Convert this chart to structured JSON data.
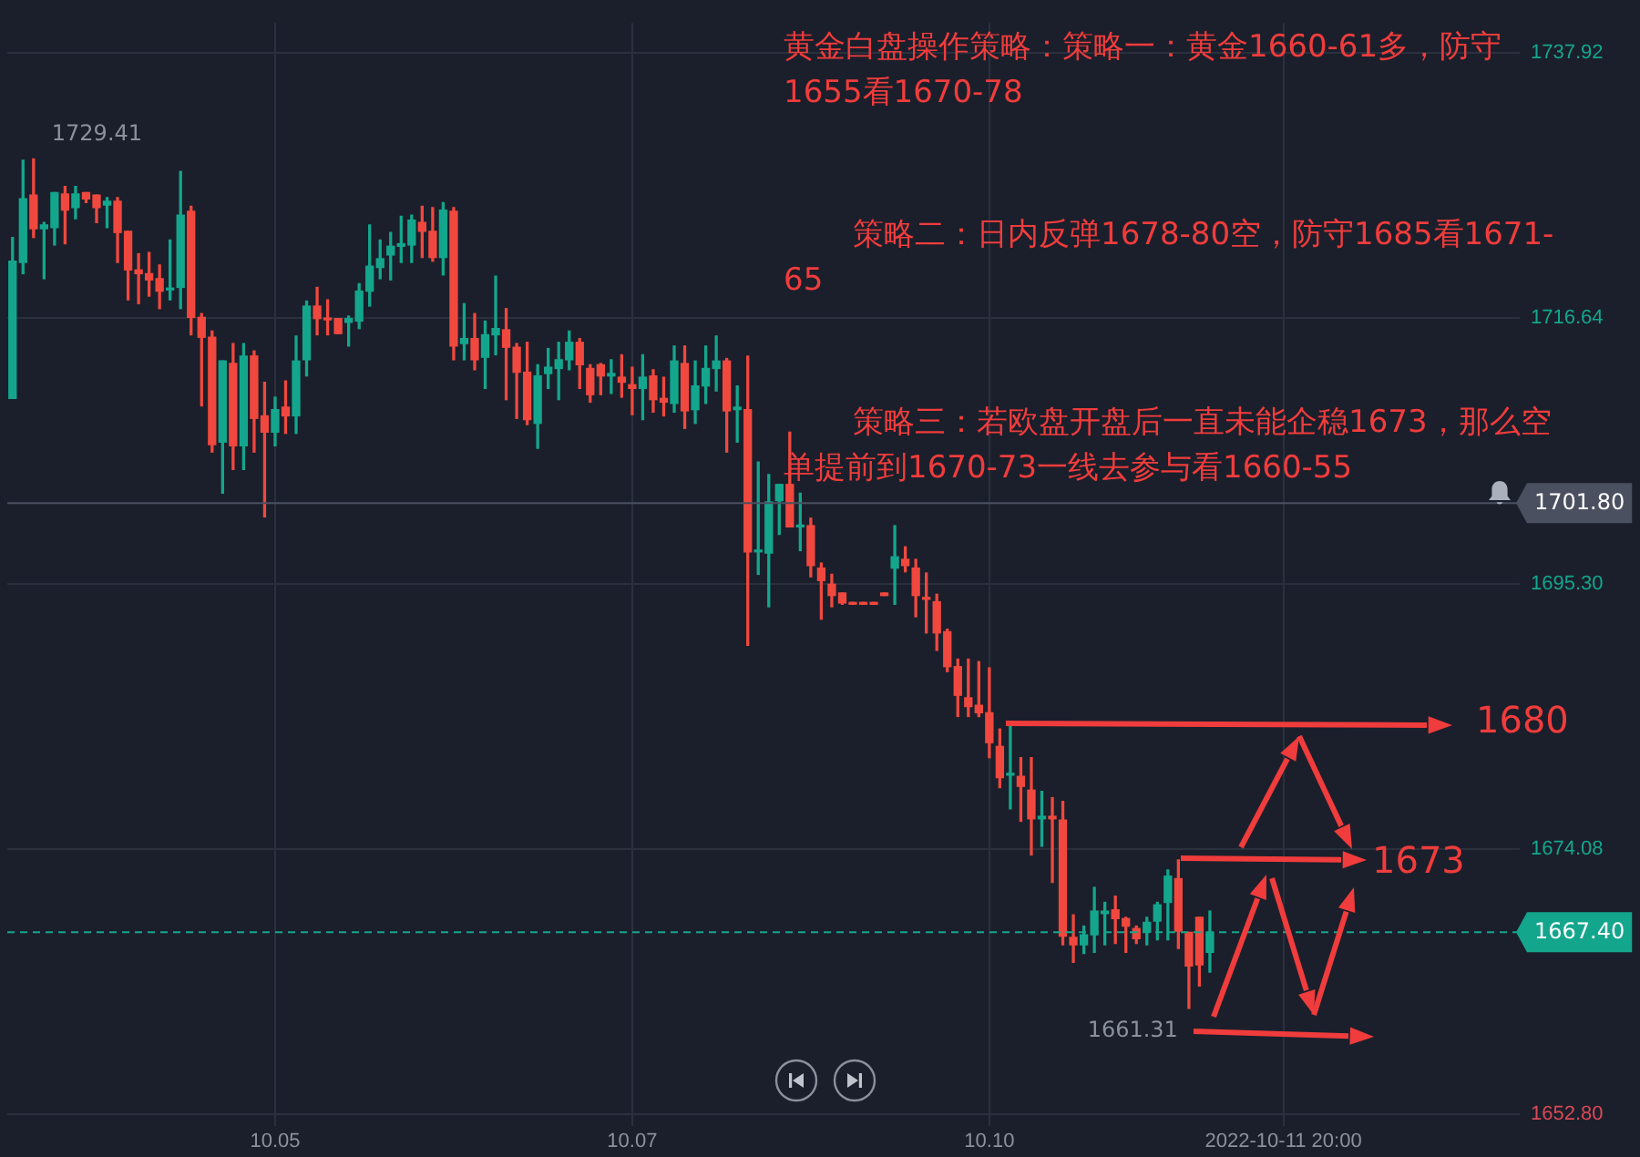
{
  "chart_data": {
    "type": "candlestick",
    "categories": [
      null,
      null,
      null,
      null,
      null,
      null,
      null,
      null,
      null,
      null,
      null,
      null,
      null,
      null,
      null,
      null,
      null,
      null,
      null,
      null,
      null,
      null,
      null,
      null,
      null,
      "10.05",
      null,
      null,
      null,
      null,
      null,
      null,
      null,
      null,
      null,
      null,
      null,
      null,
      null,
      null,
      null,
      null,
      null,
      null,
      null,
      null,
      null,
      null,
      null,
      null,
      null,
      null,
      null,
      null,
      null,
      null,
      null,
      null,
      null,
      "10.07",
      null,
      null,
      null,
      null,
      null,
      null,
      null,
      null,
      null,
      null,
      null,
      null,
      null,
      null,
      null,
      null,
      null,
      null,
      null,
      null,
      null,
      null,
      null,
      null,
      null,
      null,
      null,
      null,
      null,
      null,
      null,
      null,
      null,
      "10.10",
      null,
      null,
      null,
      null,
      null,
      null,
      null,
      null,
      null,
      null,
      null,
      null,
      null,
      null,
      null,
      null,
      null,
      null,
      null,
      null,
      null,
      null,
      null,
      null,
      null,
      null,
      null,
      "2022-10-11 20:00",
      null,
      null,
      null,
      null,
      null,
      null,
      null,
      null,
      null,
      null,
      null,
      null,
      null,
      null,
      null,
      null,
      null,
      null,
      null,
      null,
      null,
      null
    ],
    "ohlc": [
      [
        1710.2,
        1723.1,
        1710.2,
        1721.2
      ],
      [
        1721.1,
        1729.3,
        1720.2,
        1726.2
      ],
      [
        1726.5,
        1729.41,
        1723.1,
        1723.8
      ],
      [
        1723.8,
        1724.3,
        1719.8,
        1724.1
      ],
      [
        1723.9,
        1726.7,
        1722.5,
        1726.7
      ],
      [
        1726.6,
        1727.2,
        1722.6,
        1725.3
      ],
      [
        1725.5,
        1727.2,
        1724.6,
        1726.6
      ],
      [
        1726.7,
        1726.7,
        1725.9,
        1726.2
      ],
      [
        1726.5,
        1726.5,
        1724.3,
        1725.5
      ],
      [
        1725.7,
        1726.3,
        1723.9,
        1726.0
      ],
      [
        1726.0,
        1726.3,
        1721.1,
        1723.5
      ],
      [
        1723.6,
        1723.6,
        1718.1,
        1720.5
      ],
      [
        1720.5,
        1721.8,
        1717.8,
        1720.2
      ],
      [
        1720.2,
        1721.9,
        1718.4,
        1719.7
      ],
      [
        1719.8,
        1720.9,
        1717.4,
        1718.8
      ],
      [
        1718.9,
        1722.9,
        1718.1,
        1719.0
      ],
      [
        1719.1,
        1728.4,
        1717.4,
        1724.9
      ],
      [
        1725.2,
        1725.6,
        1715.3,
        1716.7
      ],
      [
        1716.7,
        1717.0,
        1709.6,
        1715.1
      ],
      [
        1715.1,
        1715.6,
        1705.9,
        1706.5
      ],
      [
        1706.7,
        1713.2,
        1702.6,
        1713.2
      ],
      [
        1713.0,
        1714.6,
        1704.5,
        1706.4
      ],
      [
        1706.4,
        1714.6,
        1704.5,
        1713.6
      ],
      [
        1713.6,
        1714.0,
        1705.9,
        1708.6
      ],
      [
        1708.8,
        1711.5,
        1700.7,
        1707.5
      ],
      [
        1707.5,
        1710.3,
        1706.4,
        1709.3
      ],
      [
        1709.5,
        1711.6,
        1707.4,
        1708.8
      ],
      [
        1708.8,
        1715.2,
        1707.4,
        1713.2
      ],
      [
        1713.3,
        1718.0,
        1712.0,
        1717.6
      ],
      [
        1717.6,
        1719.1,
        1715.3,
        1716.6
      ],
      [
        1716.6,
        1718.1,
        1715.3,
        1716.5
      ],
      [
        1716.6,
        1716.6,
        1715.4,
        1715.4
      ],
      [
        1716.3,
        1716.8,
        1714.4,
        1716.6
      ],
      [
        1716.4,
        1719.4,
        1715.8,
        1718.8
      ],
      [
        1718.8,
        1724.1,
        1717.6,
        1720.8
      ],
      [
        1720.7,
        1722.9,
        1719.8,
        1721.4
      ],
      [
        1721.7,
        1723.5,
        1719.7,
        1722.4
      ],
      [
        1722.4,
        1724.8,
        1721.1,
        1722.6
      ],
      [
        1722.5,
        1724.9,
        1721.1,
        1724.5
      ],
      [
        1724.3,
        1725.6,
        1721.5,
        1723.6
      ],
      [
        1723.6,
        1725.5,
        1721.2,
        1721.5
      ],
      [
        1721.5,
        1725.9,
        1720.1,
        1725.3
      ],
      [
        1725.2,
        1725.5,
        1713.3,
        1714.4
      ],
      [
        1714.6,
        1717.8,
        1713.3,
        1715.0
      ],
      [
        1715.0,
        1717.0,
        1712.5,
        1713.3
      ],
      [
        1713.5,
        1716.4,
        1711.0,
        1715.3
      ],
      [
        1715.3,
        1720.0,
        1713.7,
        1715.8
      ],
      [
        1715.7,
        1717.4,
        1710.1,
        1714.3
      ],
      [
        1714.3,
        1714.6,
        1708.6,
        1712.3
      ],
      [
        1712.3,
        1714.7,
        1708.1,
        1708.5
      ],
      [
        1708.2,
        1712.9,
        1706.2,
        1712.0
      ],
      [
        1712.2,
        1714.2,
        1711.0,
        1712.7
      ],
      [
        1712.6,
        1714.7,
        1710.1,
        1713.3
      ],
      [
        1713.3,
        1715.6,
        1712.5,
        1714.7
      ],
      [
        1714.7,
        1715.0,
        1711.0,
        1712.9
      ],
      [
        1712.6,
        1712.9,
        1709.9,
        1710.5
      ],
      [
        1712.9,
        1713.0,
        1710.5,
        1712.0
      ],
      [
        1712.0,
        1713.3,
        1710.6,
        1712.2
      ],
      [
        1711.9,
        1713.7,
        1710.3,
        1711.5
      ],
      [
        1711.3,
        1712.7,
        1708.9,
        1711.0
      ],
      [
        1711.0,
        1713.7,
        1708.5,
        1711.9
      ],
      [
        1712.0,
        1712.5,
        1709.1,
        1710.1
      ],
      [
        1710.2,
        1711.9,
        1708.8,
        1709.9
      ],
      [
        1709.8,
        1714.4,
        1709.1,
        1713.2
      ],
      [
        1713.0,
        1714.4,
        1707.8,
        1709.2
      ],
      [
        1709.3,
        1713.2,
        1708.2,
        1711.2
      ],
      [
        1711.2,
        1714.4,
        1709.8,
        1712.6
      ],
      [
        1712.6,
        1715.2,
        1710.8,
        1713.2
      ],
      [
        1713.2,
        1713.4,
        1705.9,
        1709.2
      ],
      [
        1709.3,
        1711.2,
        1706.7,
        1709.5
      ],
      [
        1709.3,
        1713.6,
        1690.4,
        1697.9
      ],
      [
        1697.9,
        1705.1,
        1696.1,
        1698.0
      ],
      [
        1697.8,
        1704.1,
        1693.5,
        1701.9
      ],
      [
        1702.0,
        1703.3,
        1699.3,
        1703.3
      ],
      [
        1703.3,
        1707.5,
        1699.9,
        1699.9
      ],
      [
        1699.9,
        1702.6,
        1698.0,
        1700.0
      ],
      [
        1700.0,
        1700.6,
        1695.9,
        1696.8
      ],
      [
        1696.6,
        1697.0,
        1692.5,
        1695.6
      ],
      [
        1695.3,
        1696.1,
        1693.5,
        1694.4
      ],
      [
        1694.6,
        1694.6,
        1693.7,
        1693.8
      ],
      [
        1693.7,
        1693.7,
        1693.7,
        1693.7
      ],
      [
        1693.7,
        1693.7,
        1693.7,
        1693.7
      ],
      [
        1693.7,
        1693.7,
        1693.7,
        1693.7
      ],
      [
        1694.6,
        1694.6,
        1694.4,
        1694.4
      ],
      [
        1696.6,
        1700.0,
        1693.7,
        1697.5
      ],
      [
        1697.3,
        1698.3,
        1696.3,
        1696.8
      ],
      [
        1696.6,
        1697.3,
        1692.7,
        1694.4
      ],
      [
        1694.2,
        1696.2,
        1691.4,
        1694.1
      ],
      [
        1693.9,
        1694.5,
        1690.0,
        1691.4
      ],
      [
        1691.5,
        1691.7,
        1688.3,
        1688.7
      ],
      [
        1688.7,
        1689.3,
        1684.7,
        1686.4
      ],
      [
        1686.2,
        1689.3,
        1684.7,
        1685.5
      ],
      [
        1685.6,
        1689.1,
        1684.7,
        1685.0
      ],
      [
        1685.0,
        1688.6,
        1681.4,
        1682.6
      ],
      [
        1682.3,
        1683.7,
        1679.0,
        1679.8
      ],
      [
        1680.0,
        1684.2,
        1677.3,
        1680.1
      ],
      [
        1679.9,
        1681.4,
        1676.3,
        1679.1
      ],
      [
        1678.8,
        1681.4,
        1673.6,
        1676.5
      ],
      [
        1676.5,
        1678.7,
        1674.3,
        1676.7
      ],
      [
        1676.7,
        1678.2,
        1671.4,
        1676.5
      ],
      [
        1676.4,
        1677.9,
        1666.4,
        1667.1
      ],
      [
        1667.0,
        1668.8,
        1665.0,
        1666.4
      ],
      [
        1666.4,
        1667.9,
        1665.7,
        1667.2
      ],
      [
        1667.2,
        1671.0,
        1665.8,
        1669.1
      ],
      [
        1668.9,
        1669.8,
        1666.4,
        1669.1
      ],
      [
        1669.2,
        1670.3,
        1666.5,
        1668.5
      ],
      [
        1668.5,
        1668.6,
        1665.8,
        1667.9
      ],
      [
        1667.7,
        1667.9,
        1666.5,
        1666.9
      ],
      [
        1667.4,
        1668.6,
        1666.4,
        1668.2
      ],
      [
        1668.3,
        1669.8,
        1666.8,
        1669.6
      ],
      [
        1669.8,
        1672.4,
        1666.8,
        1671.9
      ],
      [
        1671.7,
        1673.2,
        1666.1,
        1667.5
      ],
      [
        1667.4,
        1667.4,
        1661.31,
        1664.7
      ],
      [
        1668.6,
        1668.6,
        1663.1,
        1664.8
      ],
      [
        1665.8,
        1669.1,
        1664.2,
        1667.4
      ],
      null,
      null,
      null,
      null,
      null,
      null,
      null,
      null,
      null,
      null,
      null,
      null,
      null,
      null,
      null,
      null,
      null,
      null,
      null,
      null,
      null,
      null,
      null,
      null,
      null,
      null,
      null,
      null,
      null
    ],
    "colors": [
      "#14a68d",
      "#14a68d",
      "#f0483e",
      "#14a68d",
      "#14a68d",
      "#f0483e",
      "#14a68d",
      "#f0483e",
      "#f0483e",
      "#14a68d",
      "#f0483e",
      "#f0483e",
      "#f0483e",
      "#f0483e",
      "#f0483e",
      "#14a68d",
      "#14a68d",
      "#f0483e",
      "#f0483e",
      "#f0483e",
      "#14a68d",
      "#f0483e",
      "#14a68d",
      "#f0483e",
      "#f0483e",
      "#14a68d",
      "#f0483e",
      "#14a68d",
      "#14a68d",
      "#f0483e",
      "#f0483e",
      "#f0483e",
      "#14a68d",
      "#14a68d",
      "#14a68d",
      "#14a68d",
      "#14a68d",
      "#14a68d",
      "#14a68d",
      "#f0483e",
      "#f0483e",
      "#14a68d",
      "#f0483e",
      "#14a68d",
      "#f0483e",
      "#14a68d",
      "#14a68d",
      "#f0483e",
      "#f0483e",
      "#f0483e",
      "#14a68d",
      "#14a68d",
      "#14a68d",
      "#14a68d",
      "#f0483e",
      "#f0483e",
      "#f0483e",
      "#14a68d",
      "#f0483e",
      "#f0483e",
      "#14a68d",
      "#f0483e",
      "#f0483e",
      "#14a68d",
      "#f0483e",
      "#14a68d",
      "#14a68d",
      "#14a68d",
      "#f0483e",
      "#14a68d",
      "#f0483e",
      "#14a68d",
      "#14a68d",
      "#14a68d",
      "#f0483e",
      "#14a68d",
      "#f0483e",
      "#f0483e",
      "#f0483e",
      "#f0483e",
      "#f0483e",
      "#f0483e",
      "#f0483e",
      "#f0483e",
      "#14a68d",
      "#f0483e",
      "#f0483e",
      "#f0483e",
      "#f0483e",
      "#f0483e",
      "#f0483e",
      "#f0483e",
      "#f0483e",
      "#f0483e",
      "#f0483e",
      "#14a68d",
      "#f0483e",
      "#f0483e",
      "#14a68d",
      "#f0483e",
      "#f0483e",
      "#f0483e",
      "#14a68d",
      "#14a68d",
      "#14a68d",
      "#f0483e",
      "#f0483e",
      "#f0483e",
      "#14a68d",
      "#14a68d",
      "#14a68d",
      "#f0483e",
      "#f0483e",
      "#f0483e",
      "#14a68d",
      null,
      null,
      null,
      null,
      null,
      null,
      null,
      null,
      null,
      null,
      null,
      null,
      null,
      null,
      null,
      null,
      null,
      null,
      null,
      null,
      null,
      null,
      null,
      null,
      null,
      null,
      null,
      null,
      null
    ],
    "ylim": [
      1651.9,
      1740.3
    ],
    "yticks": [
      1737.92,
      1716.64,
      {
        "value": 1695.3,
        "label": "1695.30"
      },
      1674.08,
      {
        "value": 1652.8,
        "label": "1652.80"
      }
    ],
    "grid": true,
    "ref_lines": [
      {
        "axis": "y",
        "value": 1701.8,
        "label": "1701.80",
        "color": "#4a5060",
        "line_style": "solid"
      },
      {
        "axis": "y",
        "value": 1667.4,
        "label": "1667.40",
        "color": "#14a68d",
        "line_style": "dashed"
      }
    ],
    "annotations": [
      "黄金白盘操作策略：策略一：黄金1660-61多，防守1655看1670-78",
      "策略二：日内反弹1678-80空，防守1685看1671-65",
      "策略三：若欧盘开盘后一直未能企稳1673，那么空单提前到1670-73一线去参与看1660-55",
      "1680",
      "1673",
      "1729.41",
      "1661.31"
    ]
  }
}
